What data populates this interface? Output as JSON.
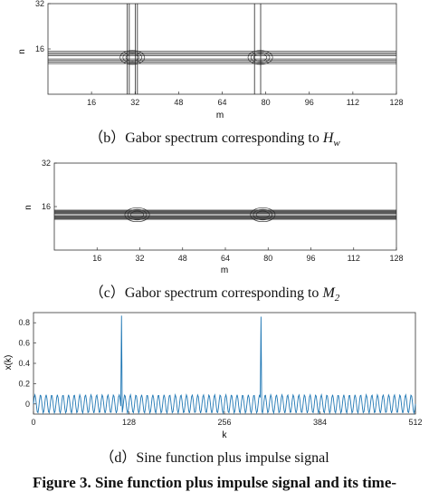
{
  "captions": {
    "b": {
      "prefix": "（b）Gabor spectrum corresponding to ",
      "sym": "H",
      "sub": "w"
    },
    "c": {
      "prefix": "（c）Gabor spectrum corresponding to ",
      "sym": "M",
      "sub": "2"
    },
    "d": {
      "text": "（d）Sine function plus impulse signal"
    }
  },
  "figure_title": "Figure 3. Sine function plus impulse signal and its time-",
  "colors": {
    "contour": "#222222",
    "signal": "#1f77b4",
    "axis": "#333333"
  },
  "chart_data": [
    {
      "type": "contour",
      "panel": "b",
      "xlabel": "m",
      "ylabel": "n",
      "xlim": [
        0,
        128
      ],
      "ylim": [
        0,
        32
      ],
      "x_ticks": [
        16,
        32,
        48,
        64,
        80,
        96,
        112,
        128
      ],
      "y_ticks": [
        16,
        32
      ],
      "bands": [
        {
          "axis": "horizontal",
          "center": 13,
          "levels": 4
        },
        {
          "axis": "vertical",
          "center": 31,
          "levels": 2
        },
        {
          "axis": "vertical",
          "center": 77,
          "levels": 1
        }
      ],
      "blobs": [
        {
          "m": 31,
          "n": 13
        },
        {
          "m": 78,
          "n": 13
        }
      ]
    },
    {
      "type": "contour",
      "panel": "c",
      "xlabel": "m",
      "ylabel": "n",
      "xlim": [
        0,
        128
      ],
      "ylim": [
        0,
        32
      ],
      "x_ticks": [
        16,
        32,
        48,
        64,
        80,
        96,
        112,
        128
      ],
      "y_ticks": [
        16,
        32
      ],
      "bands": [
        {
          "axis": "horizontal",
          "center": 13,
          "levels": 5
        }
      ],
      "blobs": [
        {
          "m": 31,
          "n": 13
        },
        {
          "m": 78,
          "n": 13
        }
      ]
    },
    {
      "type": "line",
      "panel": "d",
      "xlabel": "k",
      "ylabel": "x(k)",
      "xlim": [
        0,
        512
      ],
      "ylim": [
        -0.1,
        0.9
      ],
      "x_ticks": [
        0,
        128,
        256,
        384,
        512
      ],
      "y_ticks": [
        0,
        0.2,
        0.4,
        0.6,
        0.8
      ],
      "series": [
        {
          "signal": "sine_plus_impulse",
          "amplitude": 0.09,
          "offset": 0.0,
          "cycles": 68,
          "length": 512,
          "impulses": [
            {
              "k": 118,
              "value": 0.87
            },
            {
              "k": 305,
              "value": 0.86
            }
          ]
        }
      ]
    }
  ]
}
